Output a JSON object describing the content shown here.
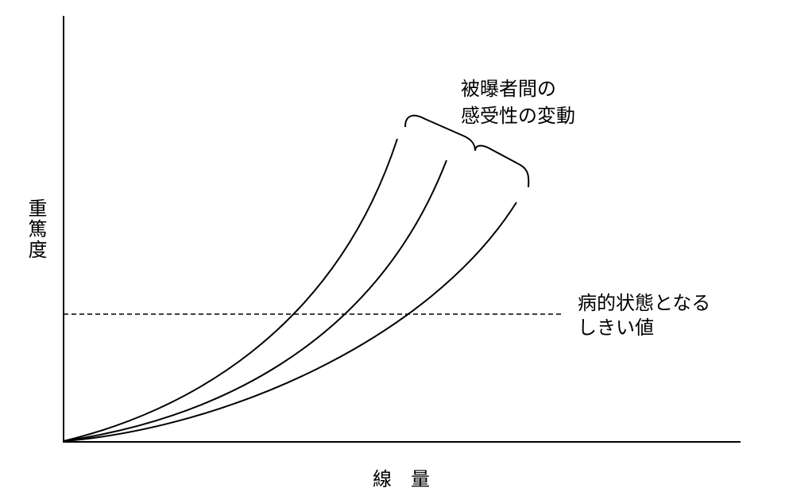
{
  "axes": {
    "y_label": "重篤度",
    "x_label": "線　量"
  },
  "annotations": {
    "variation": {
      "lines": [
        "被曝者間の",
        "感受性の変動"
      ]
    },
    "threshold": {
      "lines": [
        "病的状態となる",
        "しきい値"
      ]
    }
  }
}
